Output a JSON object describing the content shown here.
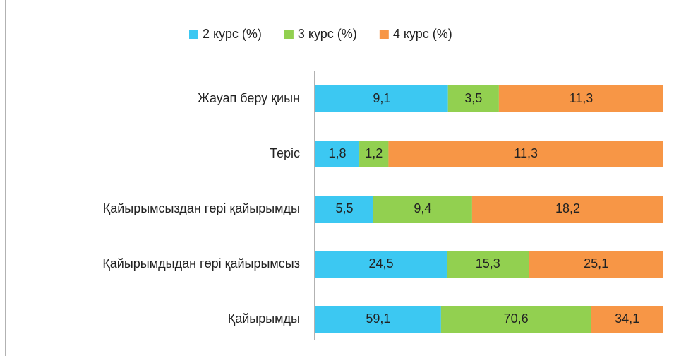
{
  "chart_data": {
    "type": "bar",
    "orientation": "horizontal",
    "stacked": "percent",
    "categories": [
      "Жауап беру қиын",
      "Теріс",
      "Қайырымсыздан гөрі қайырымды",
      "Қайырымдыдан гөрі қайырымсыз",
      "Қайырымды"
    ],
    "series": [
      {
        "name": "2 курс (%)",
        "color": "#3cc8f2",
        "values": [
          9.1,
          1.8,
          5.5,
          24.5,
          59.1
        ],
        "value_labels": [
          "9,1",
          "1,8",
          "5,5",
          "24,5",
          "59,1"
        ]
      },
      {
        "name": "3 курс (%)",
        "color": "#92d050",
        "values": [
          3.5,
          1.2,
          9.4,
          15.3,
          70.6
        ],
        "value_labels": [
          "3,5",
          "1,2",
          "9,4",
          "15,3",
          "70,6"
        ]
      },
      {
        "name": "4 курс (%)",
        "color": "#f79646",
        "values": [
          11.3,
          11.3,
          18.2,
          25.1,
          34.1
        ],
        "value_labels": [
          "11,3",
          "11,3",
          "18,2",
          "25,1",
          "34,1"
        ]
      }
    ],
    "legend": "top"
  }
}
